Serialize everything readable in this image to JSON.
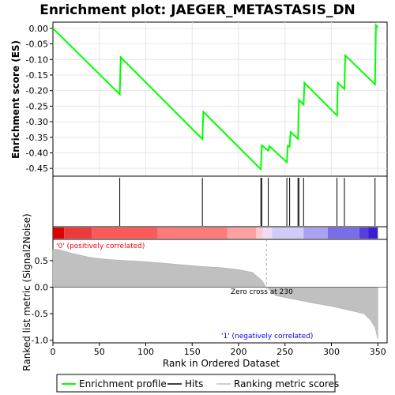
{
  "chart_data": {
    "type": "line",
    "title": "Enrichment plot: JAEGER_METASTASIS_DN",
    "x_axis": {
      "label": "Rank in Ordered Dataset",
      "range": [
        0,
        360
      ],
      "ticks": [
        0,
        50,
        100,
        150,
        200,
        250,
        300,
        350
      ],
      "tick_labels": [
        "0",
        "50",
        "100",
        "150",
        "200",
        "250",
        "300",
        "350"
      ]
    },
    "es_panel": {
      "ylabel": "Enrichment score (ES)",
      "ylim": [
        -0.475,
        0.02
      ],
      "ticks": [
        0.0,
        -0.05,
        -0.1,
        -0.15,
        -0.2,
        -0.25,
        -0.3,
        -0.35,
        -0.4,
        -0.45
      ],
      "tick_labels": [
        "0.00",
        "-0.05",
        "-0.10",
        "-0.15",
        "-0.20",
        "-0.25",
        "-0.30",
        "-0.35",
        "-0.40",
        "-0.45"
      ],
      "grid": true,
      "series": [
        {
          "name": "Enrichment profile",
          "color": "#00ff00",
          "points": [
            [
              0,
              0.0
            ],
            [
              72,
              -0.212
            ],
            [
              73,
              -0.093
            ],
            [
              161,
              -0.356
            ],
            [
              162,
              -0.268
            ],
            [
              224,
              -0.453
            ],
            [
              225,
              -0.376
            ],
            [
              232,
              -0.393
            ],
            [
              233,
              -0.378
            ],
            [
              252,
              -0.43
            ],
            [
              253,
              -0.377
            ],
            [
              255,
              -0.38
            ],
            [
              256,
              -0.333
            ],
            [
              264,
              -0.355
            ],
            [
              265,
              -0.23
            ],
            [
              270,
              -0.245
            ],
            [
              271,
              -0.175
            ],
            [
              306,
              -0.28
            ],
            [
              307,
              -0.175
            ],
            [
              314,
              -0.195
            ],
            [
              315,
              -0.087
            ],
            [
              347,
              -0.18
            ],
            [
              348,
              0.01
            ],
            [
              350,
              0.003
            ]
          ]
        }
      ]
    },
    "hits": {
      "name": "Hits",
      "ranks": [
        72,
        161,
        224,
        225,
        232,
        252,
        255,
        264,
        265,
        270,
        306,
        314,
        347
      ]
    },
    "color_bar": {
      "segments": [
        {
          "from": 0,
          "to": 12,
          "color": "#dd0000"
        },
        {
          "from": 12,
          "to": 42,
          "color": "#ee3a3a"
        },
        {
          "from": 42,
          "to": 113,
          "color": "#fa5a5a"
        },
        {
          "from": 113,
          "to": 188,
          "color": "#ff7a7a"
        },
        {
          "from": 188,
          "to": 219,
          "color": "#ffa0a0"
        },
        {
          "from": 219,
          "to": 226,
          "color": "#ffc8d0"
        },
        {
          "from": 226,
          "to": 236,
          "color": "#f2dcf5"
        },
        {
          "from": 236,
          "to": 270,
          "color": "#d0ccf8"
        },
        {
          "from": 270,
          "to": 296,
          "color": "#aaa2f2"
        },
        {
          "from": 296,
          "to": 330,
          "color": "#7a6ee8"
        },
        {
          "from": 330,
          "to": 340,
          "color": "#5540dc"
        },
        {
          "from": 340,
          "to": 350,
          "color": "#3a1ed4"
        }
      ]
    },
    "ranked_metric_panel": {
      "ylabel": "Ranked list metric (Signal2Noise)",
      "ylim": [
        -1.05,
        0.9
      ],
      "ticks": [
        0.5,
        0.0,
        -0.5,
        -1.0
      ],
      "tick_labels": [
        "0.5",
        "0.0",
        "-0.5",
        "-1.0"
      ],
      "series_name": "Ranking metric scores",
      "profile": [
        [
          0,
          0.72
        ],
        [
          8,
          0.7
        ],
        [
          20,
          0.64
        ],
        [
          40,
          0.56
        ],
        [
          60,
          0.52
        ],
        [
          80,
          0.5
        ],
        [
          100,
          0.48
        ],
        [
          120,
          0.45
        ],
        [
          140,
          0.42
        ],
        [
          160,
          0.39
        ],
        [
          180,
          0.37
        ],
        [
          200,
          0.33
        ],
        [
          215,
          0.28
        ],
        [
          225,
          0.13
        ],
        [
          230,
          0.0
        ],
        [
          240,
          -0.16
        ],
        [
          260,
          -0.23
        ],
        [
          280,
          -0.3
        ],
        [
          300,
          -0.36
        ],
        [
          320,
          -0.44
        ],
        [
          335,
          -0.5
        ],
        [
          342,
          -0.62
        ],
        [
          347,
          -0.76
        ],
        [
          350,
          -0.98
        ]
      ],
      "positive_label": "'0' (positively correlated)",
      "negative_label": "'1' (negatively correlated)",
      "zero_cross_label": "Zero cross at 230",
      "zero_cross": 230
    },
    "legend": [
      {
        "label": "Enrichment profile",
        "color": "#00ff00"
      },
      {
        "label": "Hits",
        "color": "#000000"
      },
      {
        "label": "Ranking metric scores",
        "color": "#c0c0c0"
      }
    ]
  }
}
